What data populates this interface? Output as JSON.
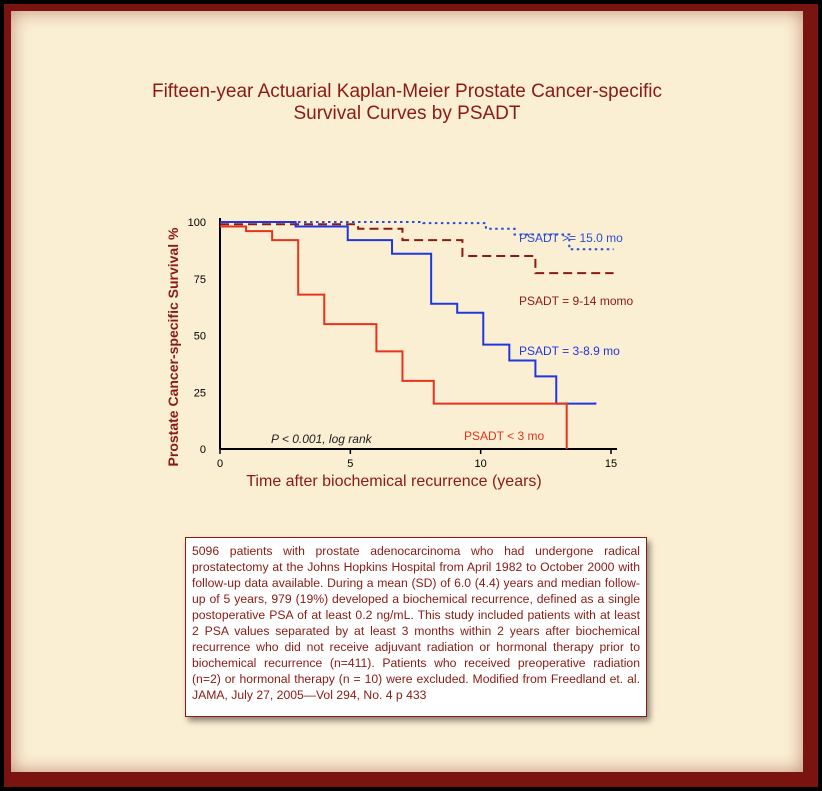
{
  "chart_data": {
    "type": "line",
    "step": true,
    "title": "Fifteen-year Actuarial Kaplan-Meier Prostate Cancer-specific Survival Curves by PSADT",
    "title_lines": [
      "Fifteen-year Actuarial Kaplan-Meier Prostate Cancer-specific",
      "Survival Curves by PSADT"
    ],
    "xlabel": "Time after biochemical recurrence (years)",
    "ylabel": "Prostate Cancer-specific Survival %",
    "xlim": [
      0,
      15
    ],
    "ylim": [
      0,
      100
    ],
    "xticks": [
      0,
      5,
      10,
      15
    ],
    "yticks": [
      0,
      25,
      50,
      75,
      100
    ],
    "grid": false,
    "annotation": "P < 0.001, log rank",
    "series": [
      {
        "name": "PSADT >= 15.0 mo",
        "color": "#2a4bd6",
        "dash": "dotted",
        "x": [
          0,
          3.2,
          7.8,
          10.2,
          11.3,
          13.4,
          15.1
        ],
        "y": [
          100,
          100,
          99.5,
          97,
          94.5,
          88,
          88
        ]
      },
      {
        "name": "PSADT = 9-14 momo",
        "color": "#8b1a12",
        "dash": "dashed",
        "x": [
          0,
          5.3,
          7,
          9.3,
          12.1,
          15.1
        ],
        "y": [
          99,
          97,
          92,
          85,
          77.5,
          77.5
        ]
      },
      {
        "name": "PSADT = 3-8.9 mo",
        "color": "#1f36e0",
        "dash": "solid",
        "x": [
          0,
          2.9,
          4.9,
          6.6,
          8.1,
          9.1,
          10.1,
          11.1,
          12.1,
          12.9,
          14.4
        ],
        "y": [
          100,
          98,
          92,
          86,
          64,
          60,
          46,
          39,
          32,
          20,
          20.5
        ]
      },
      {
        "name": "PSADT < 3 mo",
        "color": "#e8321e",
        "dash": "solid",
        "x": [
          0,
          1,
          2,
          3,
          4,
          6,
          7,
          8.2,
          13.3,
          13.3
        ],
        "y": [
          98,
          96,
          92,
          68,
          55,
          43,
          30,
          20,
          20,
          0
        ]
      }
    ]
  },
  "caption": "5096 patients with prostate adenocarcinoma who had undergone radical prostatectomy at the Johns Hopkins Hospital from April 1982 to October 2000 with follow-up data available.  During a mean (SD) of 6.0 (4.4) years and median follow-up of 5 years, 979 (19%) developed a biochemical recurrence, defined as a single postoperative PSA of at least 0.2 ng/mL. This study included patients with at least 2 PSA values separated by at least 3 months within 2 years after biochemical recurrence who did not receive adjuvant radiation or hormonal therapy prior to biochemical recurrence (n=411). Patients who received preoperative radiation (n=2) or hormonal therapy (n = 10) were excluded. Modified from Freedland et. al. JAMA, July 27, 2005—Vol 294, No. 4 p 433"
}
